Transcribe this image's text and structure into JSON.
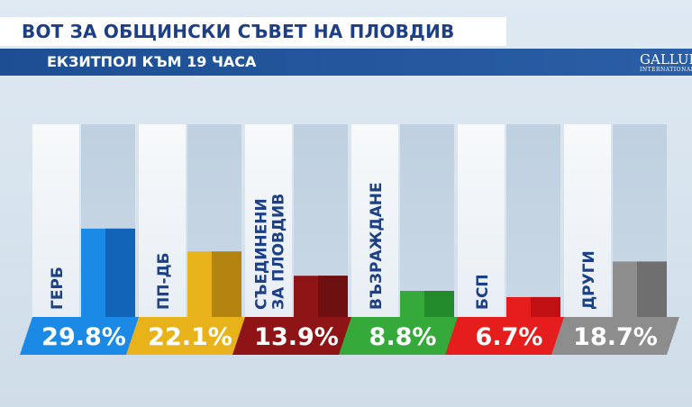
{
  "header": {
    "title": "ВОТ ЗА ОБЩИНСКИ СЪВЕТ НА ПЛОВДИВ",
    "subtitle": "ЕКЗИТПОЛ КЪМ 19 ЧАСА",
    "logo_text": "GALLUP",
    "logo_sub": "INTERNATIONAL"
  },
  "chart_data": {
    "type": "bar",
    "title": "ВОТ ЗА ОБЩИНСКИ СЪВЕТ НА ПЛОВДИВ",
    "subtitle": "ЕКЗИТПОЛ КЪМ 19 ЧАСА",
    "categories": [
      [
        "ГЕРБ"
      ],
      [
        "ПП-ДБ"
      ],
      [
        "СЪЕДИНЕНИ",
        "ЗА ПЛОВДИВ"
      ],
      [
        "ВЪЗРАЖДАНЕ"
      ],
      [
        "БСП"
      ],
      [
        "ДРУГИ"
      ]
    ],
    "values": [
      29.8,
      22.1,
      13.9,
      8.8,
      6.7,
      18.7
    ],
    "value_labels": [
      "29.8%",
      "22.1%",
      "13.9%",
      "8.8%",
      "6.7%",
      "18.7%"
    ],
    "colors": [
      "#1b8ae6",
      "#e8b31a",
      "#8e1416",
      "#35a93a",
      "#e51d1d",
      "#8d8d8d"
    ],
    "bar_colors": [
      "#1264b8",
      "#b38510",
      "#6e0f12",
      "#228a2a",
      "#c01014",
      "#6f6f6f"
    ],
    "ylim": [
      0,
      65
    ],
    "grid": false,
    "legend": "none"
  }
}
